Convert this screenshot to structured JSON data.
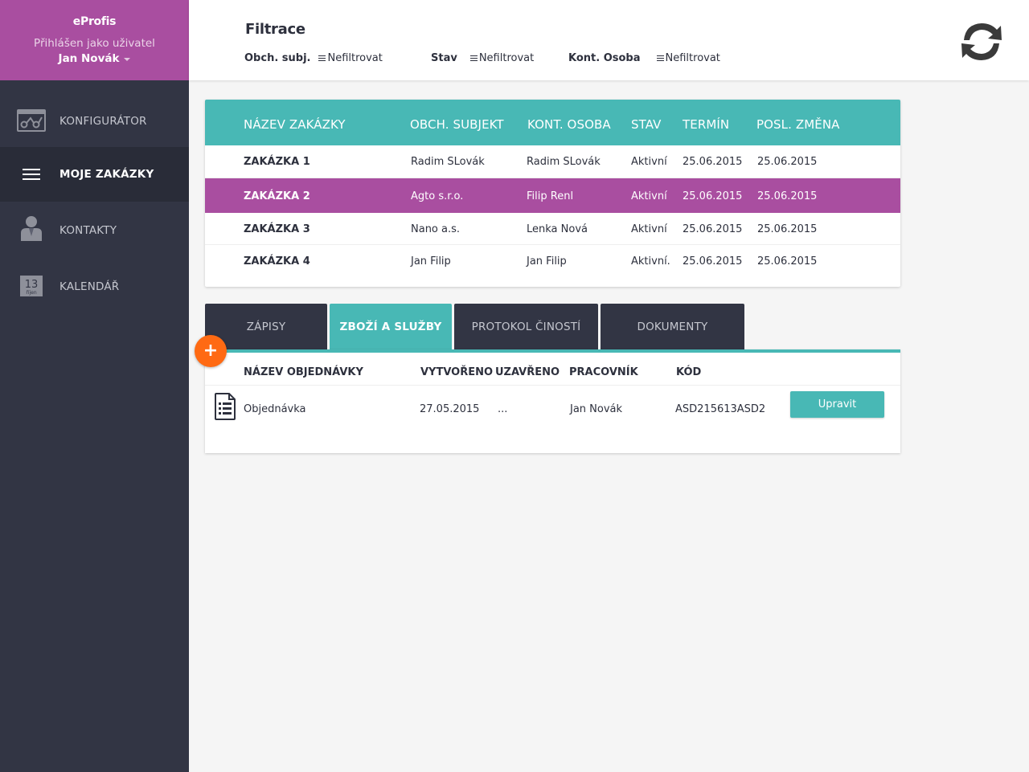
{
  "sidebar": {
    "app_name": "eProfis",
    "logged_as": "Přihlášen jako uživatel",
    "user_name": "Jan Novák",
    "items": [
      {
        "label": "KONFIGURÁTOR",
        "icon": "configurator-icon"
      },
      {
        "label": "MOJE ZAKÁZKY",
        "icon": "menu-icon",
        "active": true
      },
      {
        "label": "KONTAKTY",
        "icon": "contact-person-icon"
      },
      {
        "label": "KALENDÁŘ",
        "icon": "calendar-icon",
        "day": "13",
        "month": "říjen"
      }
    ]
  },
  "filters": {
    "title": "Filtrace",
    "items": [
      {
        "label": "Obch. subj.",
        "value": "Nefiltrovat"
      },
      {
        "label": "Stav",
        "value": "Nefiltrovat"
      },
      {
        "label": "Kont. Osoba",
        "value": "Nefiltrovat"
      }
    ]
  },
  "orders": {
    "headers": [
      "NÁZEV ZAKÁZKY",
      "OBCH. SUBJEKT",
      "KONT. OSOBA",
      "STAV",
      "TERMÍN",
      "POSL. ZMĚNA"
    ],
    "rows": [
      {
        "name": "ZAKÁZKA 1",
        "subject": "Radim SLovák",
        "person": "Radim SLovák",
        "status": "Aktivní",
        "term": "25.06.2015",
        "changed": "25.06.2015",
        "selected": false
      },
      {
        "name": "ZAKÁZKA 2",
        "subject": "Agto s.r.o.",
        "person": "Filip Renl",
        "status": "Aktivní",
        "term": "25.06.2015",
        "changed": "25.06.2015",
        "selected": true
      },
      {
        "name": "ZAKÁZKA 3",
        "subject": "Nano a.s.",
        "person": "Lenka Nová",
        "status": "Aktivní",
        "term": "25.06.2015",
        "changed": "25.06.2015",
        "selected": false
      },
      {
        "name": "ZAKÁZKA 4",
        "subject": "Jan Filip",
        "person": "Jan Filip",
        "status": "Aktivní.",
        "term": "25.06.2015",
        "changed": "25.06.2015",
        "selected": false
      }
    ]
  },
  "tabs": [
    {
      "label": "ZÁPISY",
      "active": false
    },
    {
      "label": "ZBOŽÍ A SLUŽBY",
      "active": true
    },
    {
      "label": "PROTOKOL ČINOSTÍ",
      "active": false
    },
    {
      "label": "DOKUMENTY",
      "active": false
    }
  ],
  "detail": {
    "add_label": "+",
    "headers": [
      "NÁZEV OBJEDNÁVKY",
      "VYTVOŘENO",
      "UZAVŘENO",
      "PRACOVNÍK",
      "KÓD"
    ],
    "rows": [
      {
        "name": "Objednávka",
        "created": "27.05.2015",
        "closed": "...",
        "worker": "Jan Novák",
        "code": "ASD215613ASD2",
        "action": "Upravit",
        "icon": "document-list-icon"
      }
    ]
  },
  "colors": {
    "accent_teal": "#48b8b5",
    "brand_purple": "#a94ea0",
    "sidebar_dark": "#323544",
    "add_orange": "#ff6a13"
  }
}
